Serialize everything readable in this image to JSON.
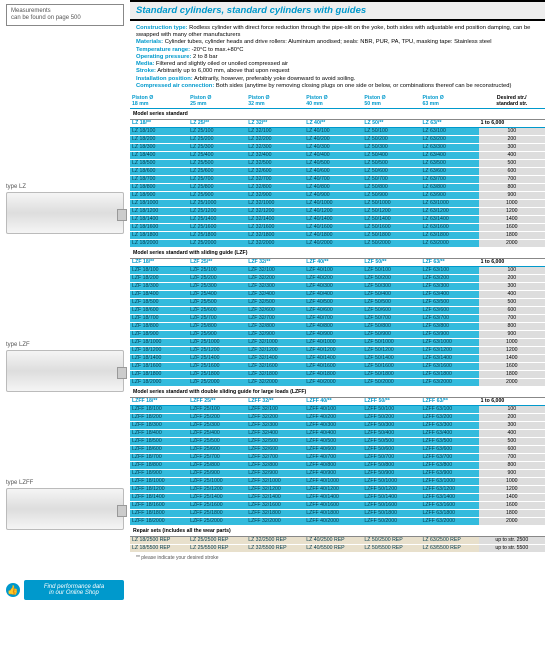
{
  "leftcol": {
    "meas_l1": "Measurements",
    "meas_l2": "can be found on page 500",
    "type_lz": "type LZ",
    "type_lzf": "type LZF",
    "type_lzff": "type LZFF",
    "shop_l1": "Find performance data",
    "shop_l2": "in our Online Shop"
  },
  "header": "Standard cylinders, standard cylinders with guides",
  "desc": {
    "k1": "Construction type:",
    "v1": " Rodless cylinder with direct force reduction through the pipe-slit on the yoke, both sides with adjustable end position damping, can be swapped with many other manufacturers",
    "k2": "Materials:",
    "v2": " Cylinder tubes, cylinder heads and drive rollers: Aluminium anodised; seals: NBR, PUR, PA, TPU, masking tape: Stainless steel",
    "k3": "Temperature range:",
    "v3": " -20°C to max.+80°C",
    "k4": "Operating pressure:",
    "v4": " 2 to 8 bar",
    "k5": "Media:",
    "v5": " Filtered and slightly oiled or unoiled compressed air",
    "k6": "Stroke:",
    "v6": " Arbitrarily up to 6,000 mm, above that upon request",
    "k7": "Installation position:",
    "v7": " Arbitrarily, however, preferably yoke downward to avoid soiling.",
    "k8": "Compressed air connection:",
    "v8": " Both sides (anytime by removing closing plugs on one side or below, or combinations thereof can be reconstructed)"
  },
  "colhdr": {
    "c1a": "Piston Ø",
    "c1b": "18 mm",
    "c2a": "Piston Ø",
    "c2b": "25 mm",
    "c3a": "Piston Ø",
    "c3b": "32 mm",
    "c4a": "Piston Ø",
    "c4b": "40 mm",
    "c5a": "Piston Ø",
    "c5b": "50 mm",
    "c6a": "Piston Ø",
    "c6b": "63 mm",
    "c7a": "Desired str./",
    "c7b": "standard str."
  },
  "sections": [
    {
      "title": "Model series standard",
      "sub": [
        "LZ 18/**",
        "LZ 25/**",
        "LZ 32/**",
        "LZ 40/**",
        "LZ 50/**",
        "LZ 63/**",
        "1 to 6,000"
      ],
      "prefix": [
        "LZ 18/",
        "LZ 25/",
        "LZ 32/",
        "LZ 40/",
        "LZ 50/",
        "LZ 63/"
      ],
      "strokes": [
        100,
        200,
        300,
        400,
        500,
        600,
        700,
        800,
        900,
        1000,
        1200,
        1400,
        1600,
        1800,
        2000
      ]
    },
    {
      "title": "Model series standard with sliding guide (LZF)",
      "sub": [
        "LZF 18/**",
        "LZF 25/**",
        "LZF 32/**",
        "LZF 40/**",
        "LZF 50/**",
        "LZF 63/**",
        "1 to 6,000"
      ],
      "prefix": [
        "LZF 18/",
        "LZF 25/",
        "LZF 32/",
        "LZF 40/",
        "LZF 50/",
        "LZF 63/"
      ],
      "strokes": [
        100,
        200,
        300,
        400,
        500,
        600,
        700,
        800,
        900,
        1000,
        1200,
        1400,
        1600,
        1800,
        2000
      ]
    },
    {
      "title": "Model series standard with double sliding guide for large loads (LZFF)",
      "sub": [
        "LZFF 18/**",
        "LZFF 25/**",
        "LZFF 32/**",
        "LZFF 40/**",
        "LZFF 50/**",
        "LZFF 63/**",
        "1 to 6,000"
      ],
      "prefix": [
        "LZFF 18/",
        "LZFF 25/",
        "LZFF 32/",
        "LZFF 40/",
        "LZFF 50/",
        "LZFF 63/"
      ],
      "strokes": [
        100,
        200,
        300,
        400,
        500,
        600,
        700,
        800,
        900,
        1000,
        1200,
        1400,
        1600,
        1800,
        2000
      ]
    }
  ],
  "repair": {
    "title": "Repair sets (includes all the wear parts)",
    "rows": [
      [
        "LZ 18/2500 REP",
        "LZ 25/2500 REP",
        "LZ 32/2500 REP",
        "LZ 40/2500 REP",
        "LZ 50/2500 REP",
        "LZ 63/2500 REP",
        "up to str. 2500"
      ],
      [
        "LZ 18/5500 REP",
        "LZ 25/5500 REP",
        "LZ 32/5500 REP",
        "LZ 40/5500 REP",
        "LZ 50/5500 REP",
        "LZ 63/5500 REP",
        "up to str. 5500"
      ]
    ]
  },
  "footnote": "** please indicate your desired stroke"
}
